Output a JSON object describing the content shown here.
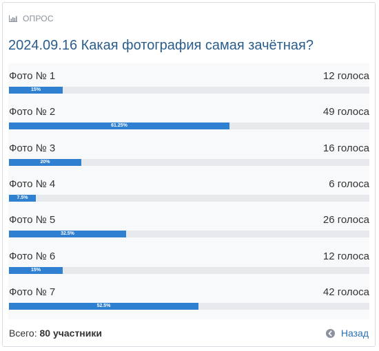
{
  "poll": {
    "label": "ОПРОС",
    "label_icon": "bar-chart-icon",
    "title": "2024.09.16 Какая фотография самая зачётная?",
    "options": [
      {
        "label": "Фото № 1",
        "votes": "12 голоса",
        "percent": "15%",
        "fraction": 0.15
      },
      {
        "label": "Фото № 2",
        "votes": "49 голоса",
        "percent": "61.25%",
        "fraction": 0.6125
      },
      {
        "label": "Фото № 3",
        "votes": "16 голоса",
        "percent": "20%",
        "fraction": 0.2
      },
      {
        "label": "Фото № 4",
        "votes": "6 голоса",
        "percent": "7.5%",
        "fraction": 0.075
      },
      {
        "label": "Фото № 5",
        "votes": "26 голоса",
        "percent": "32.5%",
        "fraction": 0.325
      },
      {
        "label": "Фото № 6",
        "votes": "12 голоса",
        "percent": "15%",
        "fraction": 0.15
      },
      {
        "label": "Фото № 7",
        "votes": "42 голоса",
        "percent": "52.5%",
        "fraction": 0.525
      }
    ],
    "footer": {
      "total_prefix": "Всего:",
      "total_value": "80 участники",
      "back_label": "Назад",
      "back_icon": "circle-arrow-left-icon"
    }
  },
  "colors": {
    "bar_fill": "#2f80d1",
    "bar_track": "#e7e9ec",
    "title": "#2a5d8c",
    "link": "#2a6fb6"
  }
}
